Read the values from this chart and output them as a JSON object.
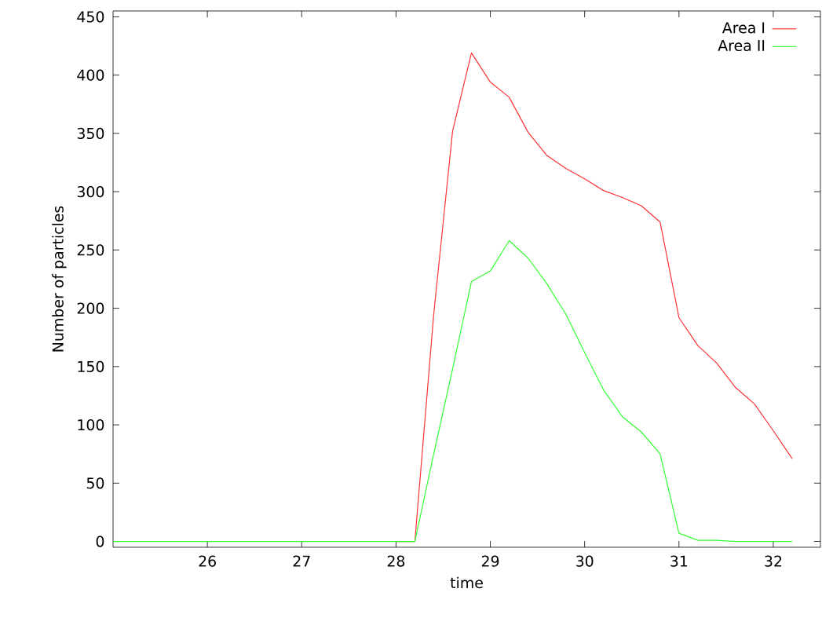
{
  "chart_data": {
    "type": "line",
    "xlabel": "time",
    "ylabel": "Number of particles",
    "x": [
      25.0,
      25.2,
      25.4,
      25.6,
      25.8,
      26.0,
      26.2,
      26.4,
      26.6,
      26.8,
      27.0,
      27.2,
      27.4,
      27.6,
      27.8,
      28.0,
      28.2,
      28.4,
      28.6,
      28.8,
      29.0,
      29.2,
      29.4,
      29.6,
      29.8,
      30.0,
      30.2,
      30.4,
      30.6,
      30.8,
      31.0,
      31.2,
      31.4,
      31.6,
      31.8,
      32.0,
      32.2
    ],
    "series": [
      {
        "name": "Area I",
        "color": "#ff3333",
        "values": [
          null,
          null,
          null,
          null,
          null,
          null,
          null,
          null,
          null,
          null,
          null,
          null,
          null,
          null,
          null,
          0,
          0,
          195,
          352,
          419,
          394,
          381,
          351,
          331,
          320,
          311,
          301,
          295,
          288,
          274,
          192,
          168,
          153,
          132,
          118,
          95,
          71
        ]
      },
      {
        "name": "Area II",
        "color": "#33ff33",
        "values": [
          0,
          0,
          0,
          0,
          0,
          0,
          0,
          0,
          0,
          0,
          0,
          0,
          0,
          0,
          0,
          0,
          0,
          75,
          148,
          223,
          232,
          258,
          243,
          221,
          195,
          162,
          130,
          107,
          94,
          75,
          7,
          1,
          1,
          0,
          0,
          0,
          0
        ]
      }
    ],
    "xlim": [
      25,
      32.5
    ],
    "ylim": [
      -5,
      455
    ],
    "xticks": [
      26,
      27,
      28,
      29,
      30,
      31,
      32
    ],
    "yticks": [
      0,
      50,
      100,
      150,
      200,
      250,
      300,
      350,
      400,
      450
    ],
    "legend": "top right",
    "grid": false,
    "marker": "none",
    "line_style": "solid"
  }
}
